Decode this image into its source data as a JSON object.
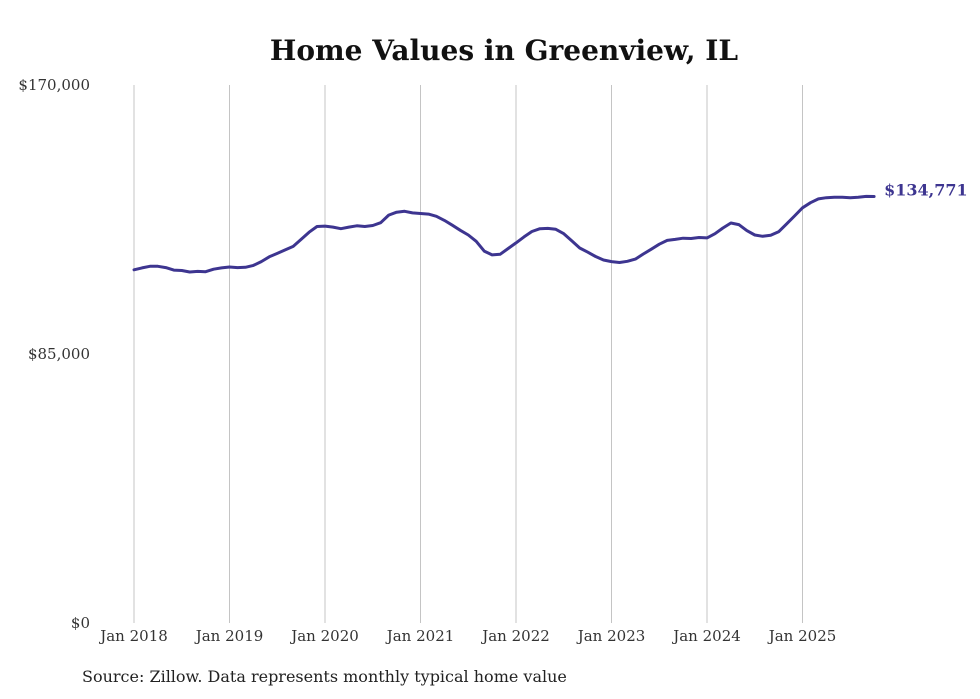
{
  "chart_data": {
    "type": "line",
    "title": "Home Values in Greenview, IL",
    "xlabel": "",
    "ylabel": "",
    "ylim": [
      0,
      170000
    ],
    "y_ticks": [
      {
        "value": 0,
        "label": "$0"
      },
      {
        "value": 85000,
        "label": "$85,000"
      },
      {
        "value": 170000,
        "label": "$170,000"
      }
    ],
    "x_ticks": [
      {
        "index": 0,
        "label": "Jan 2018"
      },
      {
        "index": 12,
        "label": "Jan 2019"
      },
      {
        "index": 24,
        "label": "Jan 2020"
      },
      {
        "index": 36,
        "label": "Jan 2021"
      },
      {
        "index": 48,
        "label": "Jan 2022"
      },
      {
        "index": 60,
        "label": "Jan 2023"
      },
      {
        "index": 72,
        "label": "Jan 2024"
      },
      {
        "index": 84,
        "label": "Jan 2025"
      }
    ],
    "x_range": [
      0,
      93
    ],
    "grid": "vertical",
    "series": [
      {
        "name": "Typical home value",
        "color": "#3d3590",
        "start": "Jan 2018",
        "frequency": "monthly",
        "values": [
          111600,
          112200,
          112700,
          112700,
          112300,
          111500,
          111400,
          110900,
          111100,
          111000,
          111800,
          112200,
          112500,
          112300,
          112400,
          113000,
          114200,
          115700,
          116800,
          117900,
          119000,
          121200,
          123500,
          125300,
          125400,
          125100,
          124600,
          125100,
          125500,
          125300,
          125600,
          126500,
          128900,
          129800,
          130100,
          129600,
          129400,
          129200,
          128500,
          127200,
          125700,
          124100,
          122600,
          120600,
          117500,
          116300,
          116500,
          118300,
          120100,
          122000,
          123700,
          124600,
          124700,
          124400,
          123000,
          120800,
          118500,
          117200,
          115800,
          114700,
          114200,
          113900,
          114300,
          115000,
          116600,
          118100,
          119700,
          120900,
          121200,
          121600,
          121500,
          121800,
          121700,
          123000,
          124800,
          126400,
          125900,
          124000,
          122600,
          122200,
          122500,
          123600,
          126100,
          128600,
          131200,
          132800,
          134000,
          134400,
          134500,
          134500,
          134400,
          134500,
          134800,
          134771
        ]
      }
    ],
    "end_label": "$134,771"
  },
  "footer": {
    "source": "Source: Zillow. Data represents monthly typical home value"
  }
}
